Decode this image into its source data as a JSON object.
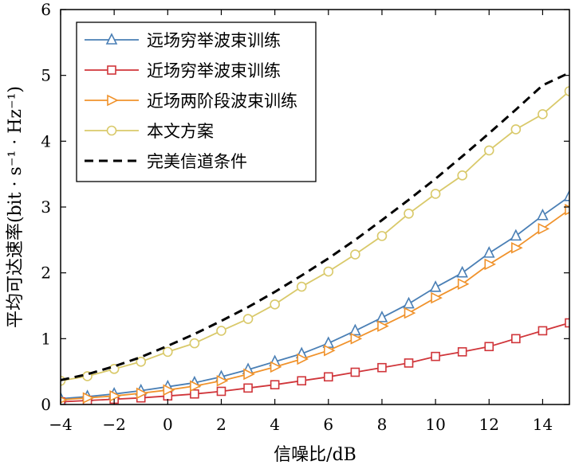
{
  "chart_data": {
    "type": "line",
    "xlabel": "信噪比/dB",
    "ylabel": "平均可达速率(bit · s⁻¹ · Hz⁻¹)",
    "xlim": [
      -4,
      15
    ],
    "ylim": [
      0,
      6
    ],
    "xticks": [
      "−4",
      "−2",
      "0",
      "2",
      "4",
      "6",
      "8",
      "10",
      "12",
      "14"
    ],
    "xtick_values": [
      -4,
      -2,
      0,
      2,
      4,
      6,
      8,
      10,
      12,
      14
    ],
    "yticks": [
      "0",
      "1",
      "2",
      "3",
      "4",
      "5",
      "6"
    ],
    "ytick_values": [
      0,
      1,
      2,
      3,
      4,
      5,
      6
    ],
    "grid": false,
    "legend_position": "top-left",
    "x": [
      -4,
      -3,
      -2,
      -1,
      0,
      1,
      2,
      3,
      4,
      5,
      6,
      7,
      8,
      9,
      10,
      11,
      12,
      13,
      14,
      15
    ],
    "series": [
      {
        "name": "远场穷举波束训练",
        "color": "#4a7fb5",
        "marker": "triangle-up",
        "dash": "solid",
        "values": [
          0.09,
          0.12,
          0.16,
          0.21,
          0.27,
          0.33,
          0.42,
          0.53,
          0.65,
          0.77,
          0.93,
          1.12,
          1.32,
          1.53,
          1.78,
          2.0,
          2.3,
          2.56,
          2.87,
          3.16
        ]
      },
      {
        "name": "近场穷举波束训练",
        "color": "#d0353a",
        "marker": "square",
        "dash": "solid",
        "values": [
          0.04,
          0.06,
          0.08,
          0.1,
          0.13,
          0.16,
          0.2,
          0.25,
          0.3,
          0.36,
          0.42,
          0.49,
          0.56,
          0.63,
          0.73,
          0.8,
          0.88,
          1.0,
          1.12,
          1.24
        ]
      },
      {
        "name": "近场两阶段波束训练",
        "color": "#f0922b",
        "marker": "triangle-right",
        "dash": "solid",
        "values": [
          0.07,
          0.1,
          0.13,
          0.17,
          0.22,
          0.28,
          0.36,
          0.46,
          0.57,
          0.69,
          0.82,
          1.0,
          1.19,
          1.39,
          1.62,
          1.83,
          2.13,
          2.38,
          2.67,
          2.96
        ]
      },
      {
        "name": "本文方案",
        "color": "#d9c96a",
        "marker": "circle",
        "dash": "solid",
        "values": [
          0.36,
          0.43,
          0.54,
          0.65,
          0.8,
          0.93,
          1.12,
          1.3,
          1.52,
          1.79,
          2.02,
          2.28,
          2.56,
          2.9,
          3.2,
          3.48,
          3.86,
          4.18,
          4.41,
          4.76
        ]
      },
      {
        "name": "完美信道条件",
        "color": "#000000",
        "marker": "none",
        "dash": "dashed",
        "values": [
          0.37,
          0.46,
          0.58,
          0.72,
          0.89,
          1.07,
          1.27,
          1.48,
          1.71,
          1.96,
          2.22,
          2.5,
          2.8,
          3.11,
          3.43,
          3.77,
          4.12,
          4.48,
          4.85,
          5.04
        ]
      }
    ]
  }
}
